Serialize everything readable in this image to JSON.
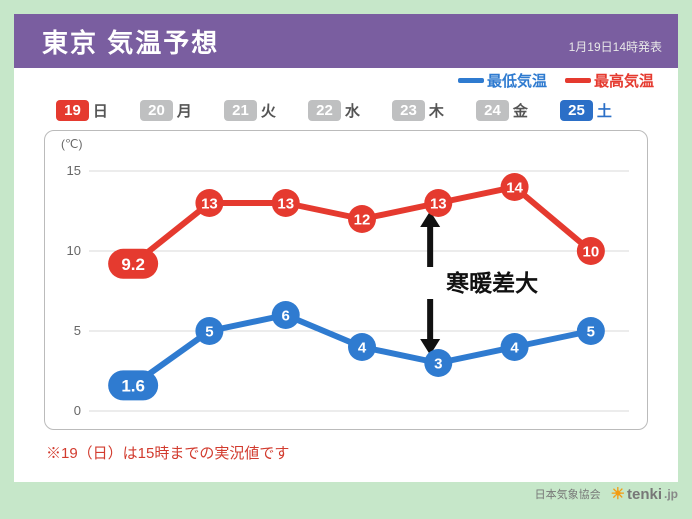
{
  "header": {
    "title": "東京  気温予想",
    "issued": "1月19日14時発表"
  },
  "legend": {
    "low": {
      "label": "最低気温",
      "color": "#2f7bd0"
    },
    "high": {
      "label": "最高気温",
      "color": "#e53a2f"
    }
  },
  "days": [
    {
      "num": "19",
      "lab": "日",
      "cls": "sun"
    },
    {
      "num": "20",
      "lab": "月",
      "cls": ""
    },
    {
      "num": "21",
      "lab": "火",
      "cls": ""
    },
    {
      "num": "22",
      "lab": "水",
      "cls": ""
    },
    {
      "num": "23",
      "lab": "木",
      "cls": ""
    },
    {
      "num": "24",
      "lab": "金",
      "cls": ""
    },
    {
      "num": "25",
      "lab": "土",
      "cls": "sat"
    }
  ],
  "chart": {
    "type": "line",
    "unit": "(℃)",
    "ylim": [
      0,
      16
    ],
    "ytick_step": 5,
    "yticks": [
      0,
      5,
      10,
      15
    ],
    "grid_color": "#d8d8d8",
    "line_width": 6,
    "marker_radius_normal": 14,
    "marker_radius_first": 22,
    "label_font_size": 15,
    "label_font_size_first": 17,
    "series": {
      "low": {
        "color": "#2f7bd0",
        "text_color": "#ffffff",
        "values": [
          1.6,
          5,
          6,
          4,
          3,
          4,
          5
        ]
      },
      "high": {
        "color": "#e53a2f",
        "text_color": "#ffffff",
        "values": [
          9.2,
          13,
          13,
          12,
          13,
          14,
          10
        ]
      }
    }
  },
  "callout": "寒暖差大",
  "footnote": "※19（日）は15時までの実況値です",
  "credit": {
    "org": "日本気象協会",
    "brand": "tenki",
    "tld": ".jp"
  }
}
